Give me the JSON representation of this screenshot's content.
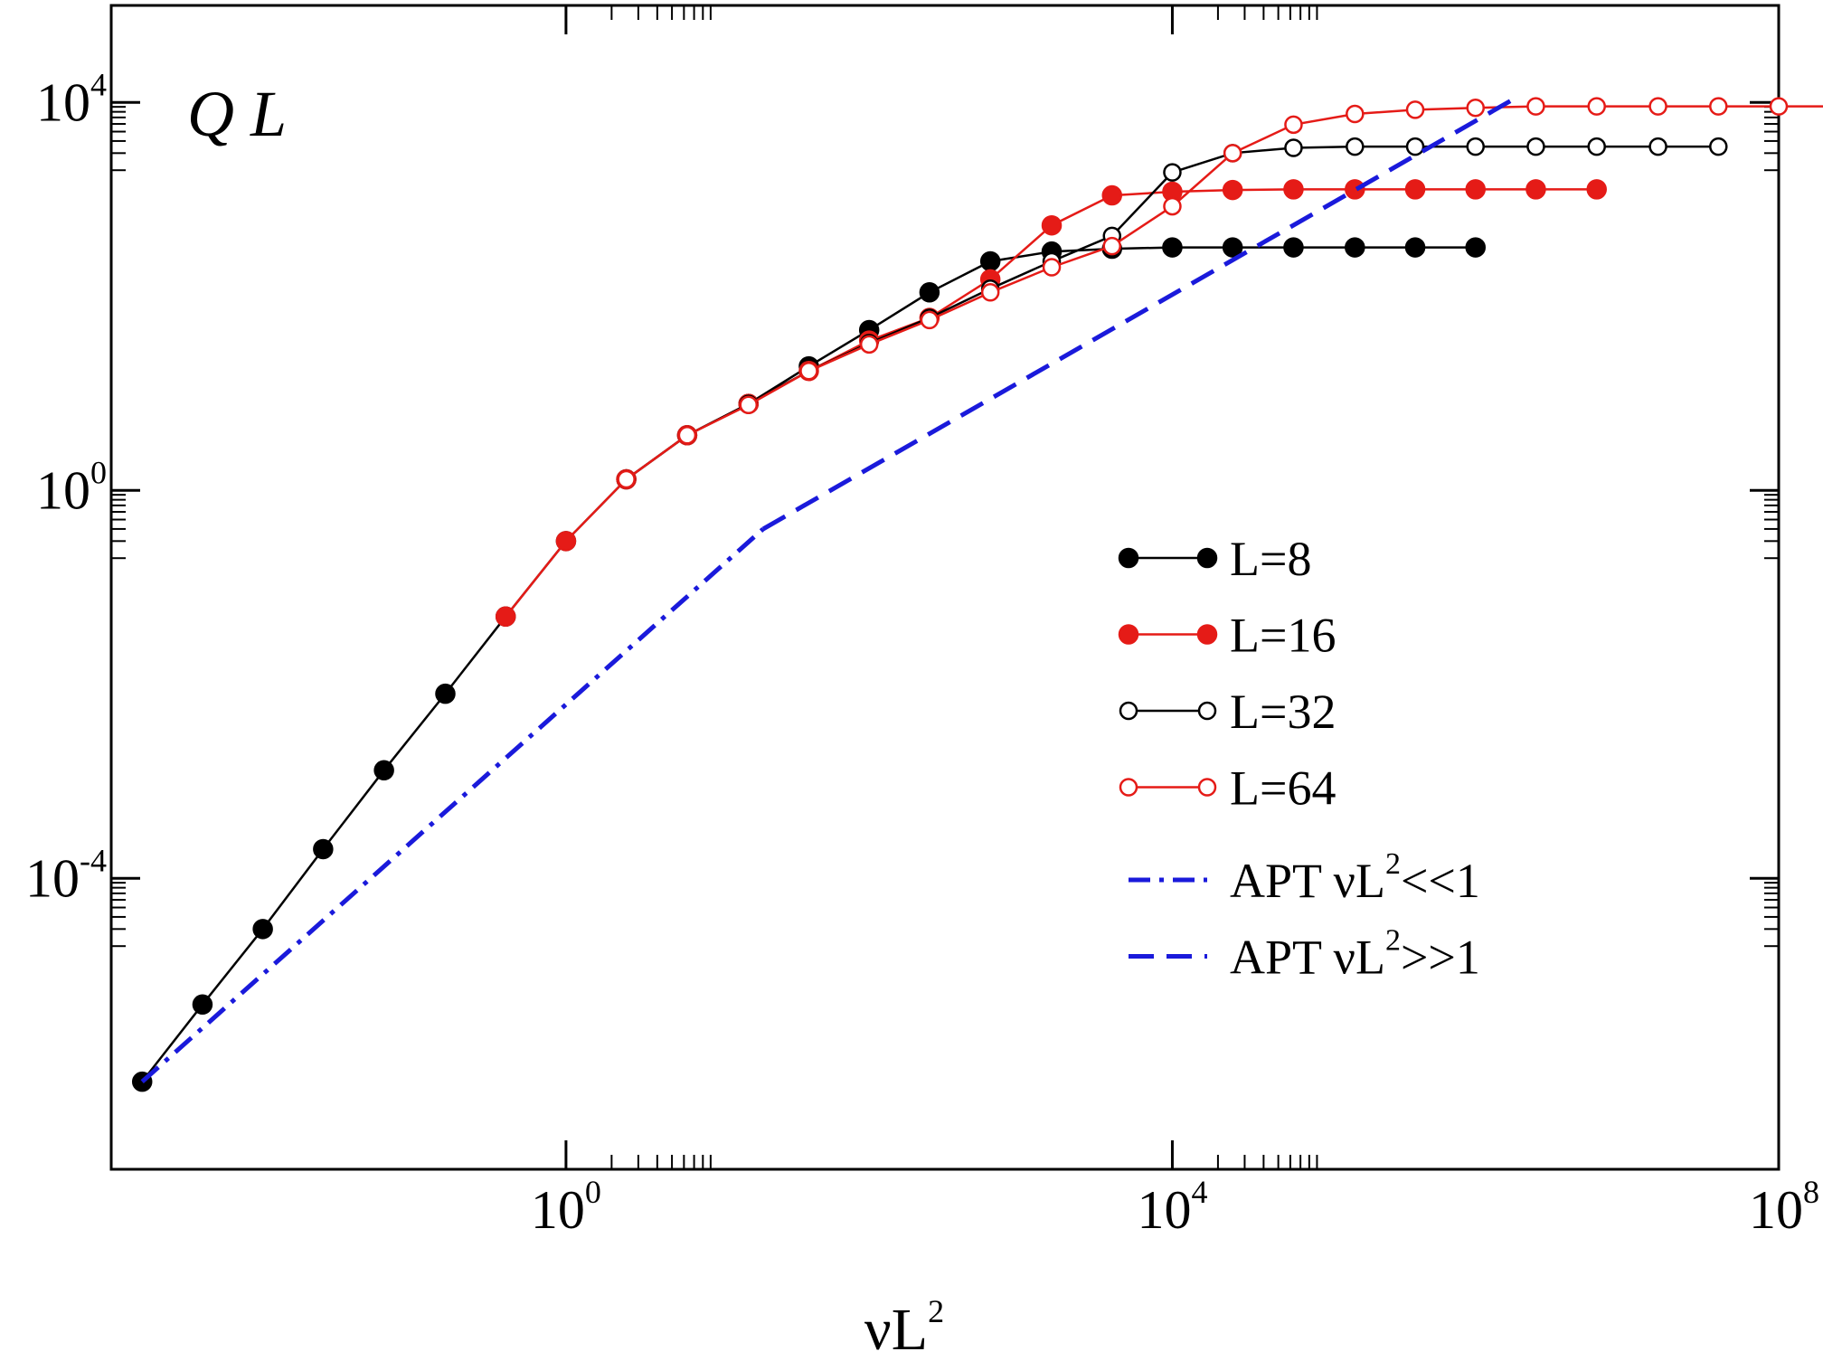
{
  "chart_data": {
    "type": "line",
    "title": "Q L",
    "xlabel": "νL",
    "xlabel_sup": "2",
    "x_scale": "log",
    "y_scale": "log",
    "xlim": [
      0.001,
      100000000.0
    ],
    "ylim": [
      1e-07,
      100000.0
    ],
    "grid": false,
    "legend_position": "right",
    "x_ticks": [
      {
        "value": 1,
        "base": "10",
        "exp": "0"
      },
      {
        "value": 10000,
        "base": "10",
        "exp": "4"
      },
      {
        "value": 100000000,
        "base": "10",
        "exp": "8"
      }
    ],
    "y_ticks": [
      {
        "value": 0.0001,
        "base": "10",
        "exp": "-4"
      },
      {
        "value": 1,
        "base": "10",
        "exp": "0"
      },
      {
        "value": 10000,
        "base": "10",
        "exp": "4"
      }
    ],
    "series": [
      {
        "name": "L=8",
        "color": "#000000",
        "marker": "filled-circle",
        "x": [
          0.0016,
          0.004,
          0.01,
          0.025,
          0.063,
          0.16,
          0.4,
          1.0,
          2.5,
          6.3,
          16,
          40,
          100,
          250,
          630,
          1600,
          4000,
          10000,
          25000,
          63000,
          160000,
          400000,
          1000000
        ],
        "y": [
          8e-07,
          5e-06,
          3e-05,
          0.0002,
          0.0013,
          0.008,
          0.05,
          0.3,
          1.3,
          3.7,
          7.8,
          19,
          45,
          110,
          230,
          290,
          310,
          320,
          320,
          320,
          320,
          320,
          320
        ]
      },
      {
        "name": "L=16",
        "color": "#e51b17",
        "marker": "filled-circle",
        "x": [
          0.4,
          1.0,
          2.5,
          6.3,
          16,
          40,
          100,
          250,
          630,
          1600,
          4000,
          10000,
          25000,
          63000,
          160000,
          400000,
          1000000,
          2500000,
          6300000
        ],
        "y": [
          0.05,
          0.3,
          1.3,
          3.7,
          7.8,
          17,
          35,
          60,
          150,
          540,
          1100,
          1200,
          1250,
          1270,
          1270,
          1270,
          1270,
          1270,
          1270
        ]
      },
      {
        "name": "L=32",
        "color": "#000000",
        "marker": "open-circle",
        "x": [
          2.5,
          6.3,
          16,
          40,
          100,
          250,
          630,
          1600,
          4000,
          10000,
          25000,
          63000,
          160000,
          400000,
          1000000,
          2500000,
          6300000,
          16000000,
          40000000
        ],
        "y": [
          1.3,
          3.7,
          7.8,
          17,
          33,
          60,
          120,
          230,
          420,
          1900,
          3000,
          3400,
          3500,
          3500,
          3500,
          3500,
          3500,
          3500,
          3500
        ]
      },
      {
        "name": "L=64",
        "color": "#e51b17",
        "marker": "open-circle",
        "x": [
          2.5,
          6.3,
          16,
          40,
          100,
          250,
          630,
          1600,
          4000,
          10000,
          25000,
          63000,
          160000,
          400000,
          1000000,
          2500000,
          6300000,
          16000000,
          40000000,
          100000000,
          250000000
        ],
        "y": [
          1.3,
          3.7,
          7.6,
          17,
          32,
          57,
          110,
          200,
          330,
          850,
          3000,
          5900,
          7600,
          8400,
          8800,
          9100,
          9100,
          9100,
          9100,
          9100,
          9100
        ]
      },
      {
        "name": "APT νL<<1",
        "name_sup": "2",
        "color": "#1a1adb",
        "linestyle": "dashdot",
        "x": [
          0.0016,
          20
        ],
        "y": [
          8e-07,
          0.4
        ]
      },
      {
        "name": "APT νL>>1",
        "name_sup": "2",
        "color": "#1a1adb",
        "linestyle": "dashed",
        "x": [
          20,
          2000000
        ],
        "y": [
          0.4,
          12000
        ]
      }
    ]
  }
}
